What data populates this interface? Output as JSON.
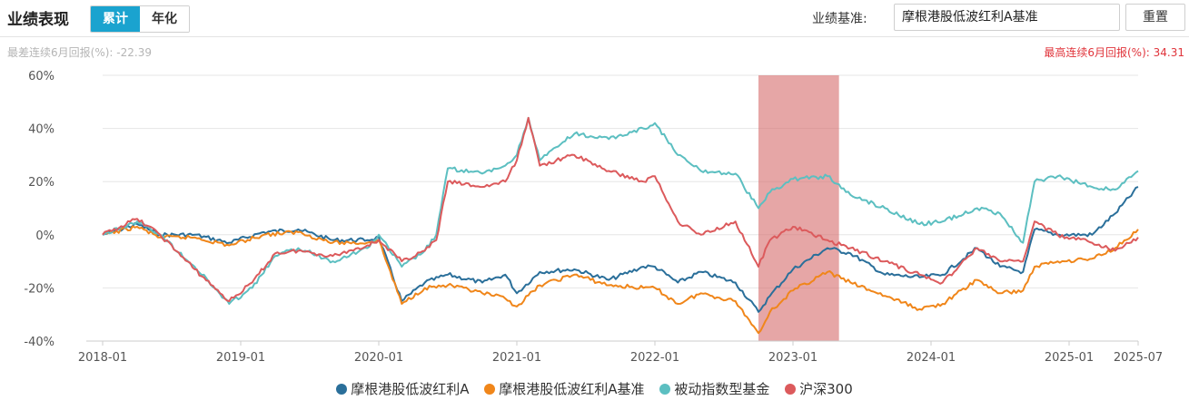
{
  "header": {
    "title": "业绩表现",
    "tabs": [
      {
        "label": "累计",
        "active": true
      },
      {
        "label": "年化",
        "active": false
      }
    ],
    "benchmark_label": "业绩基准:",
    "benchmark_value": "摩根港股低波红利A基准",
    "reset_label": "重置"
  },
  "stats": {
    "worst_label": "最差连续6月回报(%):",
    "worst_value": "-22.39",
    "best_label": "最高连续6月回报(%):",
    "best_value": "34.31"
  },
  "colors": {
    "fund": "#2a6f9a",
    "benchmark": "#f0861a",
    "passive": "#5cbfc1",
    "csi300": "#dc5a5c",
    "highlight": "#d66a6a",
    "accent": "#1aa3cf"
  },
  "chart_data": {
    "type": "line",
    "x_ticks": [
      "2018-01",
      "2019-01",
      "2020-01",
      "2021-01",
      "2022-01",
      "2023-01",
      "2024-01",
      "2025-01",
      "2025-07"
    ],
    "y_ticks": [
      "60%",
      "40%",
      "20%",
      "0%",
      "-20%",
      "-40%"
    ],
    "ylim": [
      -40,
      60
    ],
    "xlim": [
      "2018-01",
      "2025-07"
    ],
    "ylabel_unit": "%",
    "grid": true,
    "legend_position": "bottom",
    "highlight_range": [
      "2022-10",
      "2023-05"
    ],
    "series": [
      {
        "name": "摩根港股低波红利A",
        "color_key": "fund",
        "points": [
          [
            "2018-01",
            0
          ],
          [
            "2018-04",
            4
          ],
          [
            "2018-06",
            0
          ],
          [
            "2018-09",
            0
          ],
          [
            "2018-12",
            -3
          ],
          [
            "2019-03",
            1
          ],
          [
            "2019-06",
            2
          ],
          [
            "2019-09",
            -2
          ],
          [
            "2019-12",
            -2
          ],
          [
            "2020-01",
            -1
          ],
          [
            "2020-03",
            -25
          ],
          [
            "2020-05",
            -18
          ],
          [
            "2020-07",
            -15
          ],
          [
            "2020-10",
            -18
          ],
          [
            "2020-12",
            -15
          ],
          [
            "2021-01",
            -22
          ],
          [
            "2021-03",
            -14
          ],
          [
            "2021-06",
            -13
          ],
          [
            "2021-09",
            -17
          ],
          [
            "2021-12",
            -12
          ],
          [
            "2022-01",
            -12
          ],
          [
            "2022-03",
            -18
          ],
          [
            "2022-05",
            -14
          ],
          [
            "2022-08",
            -18
          ],
          [
            "2022-10",
            -29
          ],
          [
            "2022-11",
            -23
          ],
          [
            "2023-01",
            -13
          ],
          [
            "2023-04",
            -5
          ],
          [
            "2023-06",
            -7
          ],
          [
            "2023-09",
            -15
          ],
          [
            "2023-12",
            -16
          ],
          [
            "2024-02",
            -15
          ],
          [
            "2024-05",
            -5
          ],
          [
            "2024-07",
            -12
          ],
          [
            "2024-09",
            -14
          ],
          [
            "2024-10",
            2
          ],
          [
            "2024-12",
            0
          ],
          [
            "2025-03",
            0
          ],
          [
            "2025-05",
            8
          ],
          [
            "2025-07",
            18
          ]
        ]
      },
      {
        "name": "摩根港股低波红利A基准",
        "color_key": "benchmark",
        "points": [
          [
            "2018-01",
            0
          ],
          [
            "2018-04",
            3
          ],
          [
            "2018-06",
            -1
          ],
          [
            "2018-09",
            -1
          ],
          [
            "2018-12",
            -4
          ],
          [
            "2019-03",
            0
          ],
          [
            "2019-06",
            1
          ],
          [
            "2019-09",
            -3
          ],
          [
            "2019-12",
            -3
          ],
          [
            "2020-01",
            -2
          ],
          [
            "2020-03",
            -26
          ],
          [
            "2020-05",
            -20
          ],
          [
            "2020-07",
            -19
          ],
          [
            "2020-10",
            -22
          ],
          [
            "2020-12",
            -24
          ],
          [
            "2021-01",
            -27
          ],
          [
            "2021-03",
            -19
          ],
          [
            "2021-06",
            -15
          ],
          [
            "2021-09",
            -19
          ],
          [
            "2021-12",
            -20
          ],
          [
            "2022-01",
            -20
          ],
          [
            "2022-03",
            -26
          ],
          [
            "2022-05",
            -22
          ],
          [
            "2022-08",
            -25
          ],
          [
            "2022-10",
            -37
          ],
          [
            "2022-11",
            -29
          ],
          [
            "2023-01",
            -21
          ],
          [
            "2023-04",
            -14
          ],
          [
            "2023-06",
            -18
          ],
          [
            "2023-09",
            -23
          ],
          [
            "2023-12",
            -28
          ],
          [
            "2024-02",
            -26
          ],
          [
            "2024-05",
            -17
          ],
          [
            "2024-07",
            -22
          ],
          [
            "2024-09",
            -21
          ],
          [
            "2024-10",
            -12
          ],
          [
            "2024-12",
            -10
          ],
          [
            "2025-03",
            -9
          ],
          [
            "2025-05",
            -5
          ],
          [
            "2025-07",
            2
          ]
        ]
      },
      {
        "name": "被动指数型基金",
        "color_key": "passive",
        "points": [
          [
            "2018-01",
            0
          ],
          [
            "2018-04",
            5
          ],
          [
            "2018-06",
            0
          ],
          [
            "2018-09",
            -12
          ],
          [
            "2018-12",
            -26
          ],
          [
            "2019-02",
            -20
          ],
          [
            "2019-04",
            -8
          ],
          [
            "2019-06",
            -5
          ],
          [
            "2019-09",
            -10
          ],
          [
            "2019-12",
            -5
          ],
          [
            "2020-01",
            0
          ],
          [
            "2020-03",
            -12
          ],
          [
            "2020-05",
            -6
          ],
          [
            "2020-06",
            0
          ],
          [
            "2020-07",
            25
          ],
          [
            "2020-10",
            23
          ],
          [
            "2020-12",
            26
          ],
          [
            "2021-01",
            30
          ],
          [
            "2021-02",
            44
          ],
          [
            "2021-03",
            28
          ],
          [
            "2021-06",
            38
          ],
          [
            "2021-09",
            36
          ],
          [
            "2021-12",
            40
          ],
          [
            "2022-01",
            42
          ],
          [
            "2022-03",
            30
          ],
          [
            "2022-05",
            24
          ],
          [
            "2022-08",
            23
          ],
          [
            "2022-10",
            10
          ],
          [
            "2022-11",
            16
          ],
          [
            "2023-01",
            21
          ],
          [
            "2023-04",
            22
          ],
          [
            "2023-06",
            15
          ],
          [
            "2023-09",
            10
          ],
          [
            "2023-12",
            4
          ],
          [
            "2024-02",
            5
          ],
          [
            "2024-05",
            10
          ],
          [
            "2024-07",
            8
          ],
          [
            "2024-09",
            -3
          ],
          [
            "2024-10",
            20
          ],
          [
            "2024-12",
            22
          ],
          [
            "2025-03",
            18
          ],
          [
            "2025-05",
            17
          ],
          [
            "2025-07",
            24
          ]
        ]
      },
      {
        "name": "沪深300",
        "color_key": "csi300",
        "points": [
          [
            "2018-01",
            0
          ],
          [
            "2018-04",
            6
          ],
          [
            "2018-06",
            0
          ],
          [
            "2018-09",
            -13
          ],
          [
            "2018-12",
            -25
          ],
          [
            "2019-02",
            -18
          ],
          [
            "2019-04",
            -7
          ],
          [
            "2019-06",
            -6
          ],
          [
            "2019-09",
            -8
          ],
          [
            "2019-12",
            -4
          ],
          [
            "2020-01",
            -2
          ],
          [
            "2020-03",
            -10
          ],
          [
            "2020-05",
            -6
          ],
          [
            "2020-06",
            -2
          ],
          [
            "2020-07",
            20
          ],
          [
            "2020-10",
            18
          ],
          [
            "2020-12",
            20
          ],
          [
            "2021-01",
            28
          ],
          [
            "2021-02",
            44
          ],
          [
            "2021-03",
            26
          ],
          [
            "2021-06",
            30
          ],
          [
            "2021-09",
            24
          ],
          [
            "2021-12",
            20
          ],
          [
            "2022-01",
            22
          ],
          [
            "2022-03",
            5
          ],
          [
            "2022-05",
            0
          ],
          [
            "2022-08",
            5
          ],
          [
            "2022-10",
            -12
          ],
          [
            "2022-11",
            -2
          ],
          [
            "2023-01",
            3
          ],
          [
            "2023-04",
            -2
          ],
          [
            "2023-06",
            -5
          ],
          [
            "2023-09",
            -10
          ],
          [
            "2023-12",
            -15
          ],
          [
            "2024-02",
            -18
          ],
          [
            "2024-05",
            -5
          ],
          [
            "2024-07",
            -10
          ],
          [
            "2024-09",
            -10
          ],
          [
            "2024-10",
            5
          ],
          [
            "2024-12",
            0
          ],
          [
            "2025-03",
            -3
          ],
          [
            "2025-05",
            -6
          ],
          [
            "2025-07",
            -1
          ]
        ]
      }
    ]
  }
}
